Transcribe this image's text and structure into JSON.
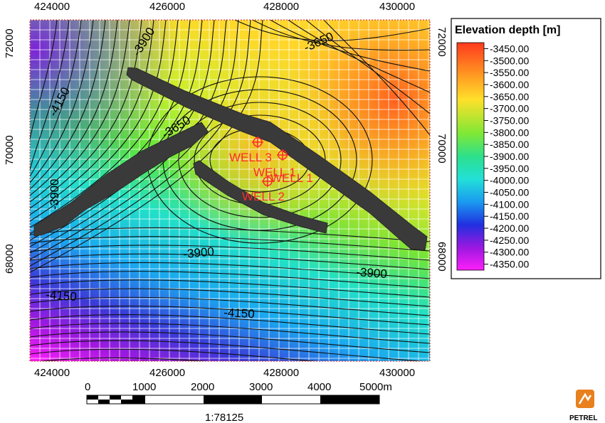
{
  "map": {
    "x_ticks": [
      "424000",
      "426000",
      "428000",
      "430000"
    ],
    "y_ticks": [
      "72000",
      "70000",
      "68000"
    ],
    "contour_labels": [
      "-3900",
      "-3650",
      "-4150",
      "-3650",
      "-3900",
      "-3900",
      "-3900",
      "-4150",
      "-4150"
    ],
    "wells": [
      "WELL 3",
      "WELL 1",
      "WELL 2"
    ]
  },
  "legend": {
    "title": "Elevation depth [m]",
    "values": [
      "-3450.00",
      "-3500.00",
      "-3550.00",
      "-3600.00",
      "-3650.00",
      "-3700.00",
      "-3750.00",
      "-3800.00",
      "-3850.00",
      "-3900.00",
      "-3950.00",
      "-4000.00",
      "-4050.00",
      "-4100.00",
      "-4150.00",
      "-4200.00",
      "-4250.00",
      "-4300.00",
      "-4350.00"
    ],
    "colors": [
      "#ff4a1e",
      "#ff7a1e",
      "#ff9e22",
      "#ffbf24",
      "#ffe02a",
      "#e9f22a",
      "#b4f02e",
      "#7fe836",
      "#3fdc4a",
      "#2ce08c",
      "#22e0c8",
      "#1ec0f0",
      "#1a8cf0",
      "#1c56e8",
      "#2a2ad8",
      "#6a1ad8",
      "#a018e0",
      "#d41ae8",
      "#ff1efa"
    ]
  },
  "scale_bar": {
    "labels": [
      "0",
      "1000",
      "2000",
      "3000",
      "4000",
      "5000m"
    ],
    "ratio": "1:78125"
  },
  "logo": {
    "text": "PETREL"
  }
}
